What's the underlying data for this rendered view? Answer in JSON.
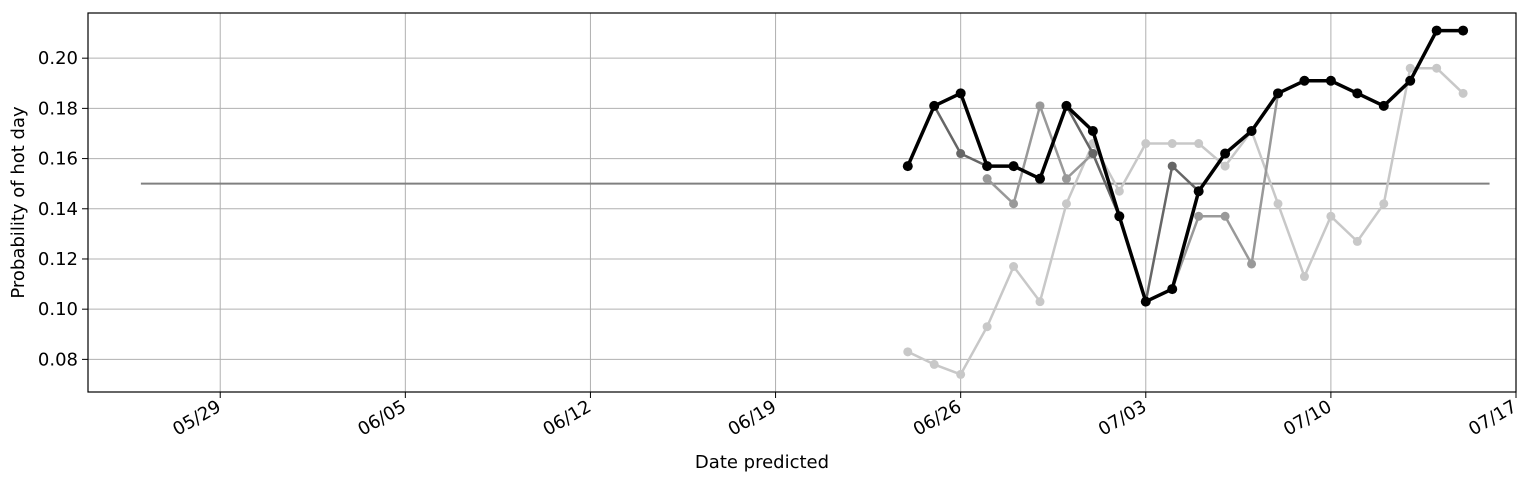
{
  "chart_data": {
    "type": "line",
    "title": "",
    "xlabel": "Date predicted",
    "ylabel": "Probability of hot day",
    "xlim": [
      "2020-05-24",
      "2020-07-17"
    ],
    "ylim": [
      0.067,
      0.218
    ],
    "xticks": [
      {
        "date": "2020-05-29",
        "label": "05/29"
      },
      {
        "date": "2020-06-05",
        "label": "06/05"
      },
      {
        "date": "2020-06-12",
        "label": "06/12"
      },
      {
        "date": "2020-06-19",
        "label": "06/19"
      },
      {
        "date": "2020-06-26",
        "label": "06/26"
      },
      {
        "date": "2020-07-03",
        "label": "07/03"
      },
      {
        "date": "2020-07-10",
        "label": "07/10"
      },
      {
        "date": "2020-07-17",
        "label": "07/17"
      }
    ],
    "yticks": [
      {
        "value": 0.08,
        "label": "0.08"
      },
      {
        "value": 0.1,
        "label": "0.10"
      },
      {
        "value": 0.12,
        "label": "0.12"
      },
      {
        "value": 0.14,
        "label": "0.14"
      },
      {
        "value": 0.16,
        "label": "0.16"
      },
      {
        "value": 0.18,
        "label": "0.18"
      },
      {
        "value": 0.2,
        "label": "0.20"
      }
    ],
    "grid": true,
    "legend": "none",
    "reference_line": {
      "x_start": "2020-05-26",
      "x_end": "2020-07-16",
      "value": 0.15,
      "color": "#808080"
    },
    "series": [
      {
        "color": "#c8c8c8",
        "points": [
          [
            "2020-06-24",
            0.083
          ],
          [
            "2020-06-25",
            0.078
          ],
          [
            "2020-06-26",
            0.074
          ],
          [
            "2020-06-27",
            0.093
          ],
          [
            "2020-06-28",
            0.117
          ],
          [
            "2020-06-29",
            0.103
          ],
          [
            "2020-06-30",
            0.142
          ],
          [
            "2020-07-01",
            0.166
          ],
          [
            "2020-07-02",
            0.147
          ],
          [
            "2020-07-03",
            0.166
          ],
          [
            "2020-07-04",
            0.166
          ],
          [
            "2020-07-05",
            0.166
          ],
          [
            "2020-07-06",
            0.157
          ],
          [
            "2020-07-07",
            0.171
          ],
          [
            "2020-07-08",
            0.142
          ],
          [
            "2020-07-09",
            0.113
          ],
          [
            "2020-07-10",
            0.137
          ],
          [
            "2020-07-11",
            0.127
          ],
          [
            "2020-07-12",
            0.142
          ],
          [
            "2020-07-13",
            0.196
          ],
          [
            "2020-07-14",
            0.196
          ],
          [
            "2020-07-15",
            0.186
          ]
        ]
      },
      {
        "color": "#999999",
        "points": [
          [
            "2020-06-27",
            0.152
          ],
          [
            "2020-06-28",
            0.142
          ],
          [
            "2020-06-29",
            0.181
          ],
          [
            "2020-06-30",
            0.152
          ],
          [
            "2020-07-01",
            0.162
          ],
          [
            "2020-07-02",
            0.137
          ],
          [
            "2020-07-03",
            0.103
          ],
          [
            "2020-07-04",
            0.108
          ],
          [
            "2020-07-05",
            0.137
          ],
          [
            "2020-07-06",
            0.137
          ],
          [
            "2020-07-07",
            0.118
          ],
          [
            "2020-07-08",
            0.186
          ]
        ]
      },
      {
        "color": "#666666",
        "points": [
          [
            "2020-06-25",
            0.181
          ],
          [
            "2020-06-26",
            0.162
          ],
          [
            "2020-06-27",
            0.157
          ],
          [
            "2020-06-28",
            0.157
          ],
          [
            "2020-06-29",
            0.152
          ],
          [
            "2020-06-30",
            0.181
          ],
          [
            "2020-07-01",
            0.162
          ],
          [
            "2020-07-02",
            0.137
          ],
          [
            "2020-07-03",
            0.103
          ],
          [
            "2020-07-04",
            0.157
          ],
          [
            "2020-07-05",
            0.147
          ]
        ]
      },
      {
        "color": "#000000",
        "points": [
          [
            "2020-06-24",
            0.157
          ],
          [
            "2020-06-25",
            0.181
          ],
          [
            "2020-06-26",
            0.186
          ],
          [
            "2020-06-27",
            0.157
          ],
          [
            "2020-06-28",
            0.157
          ],
          [
            "2020-06-29",
            0.152
          ],
          [
            "2020-06-30",
            0.181
          ],
          [
            "2020-07-01",
            0.171
          ],
          [
            "2020-07-02",
            0.137
          ],
          [
            "2020-07-03",
            0.103
          ],
          [
            "2020-07-04",
            0.108
          ],
          [
            "2020-07-05",
            0.147
          ],
          [
            "2020-07-06",
            0.162
          ],
          [
            "2020-07-07",
            0.171
          ],
          [
            "2020-07-08",
            0.186
          ],
          [
            "2020-07-09",
            0.191
          ],
          [
            "2020-07-10",
            0.191
          ],
          [
            "2020-07-11",
            0.186
          ],
          [
            "2020-07-12",
            0.181
          ],
          [
            "2020-07-13",
            0.191
          ],
          [
            "2020-07-14",
            0.211
          ],
          [
            "2020-07-15",
            0.211
          ]
        ]
      }
    ]
  }
}
